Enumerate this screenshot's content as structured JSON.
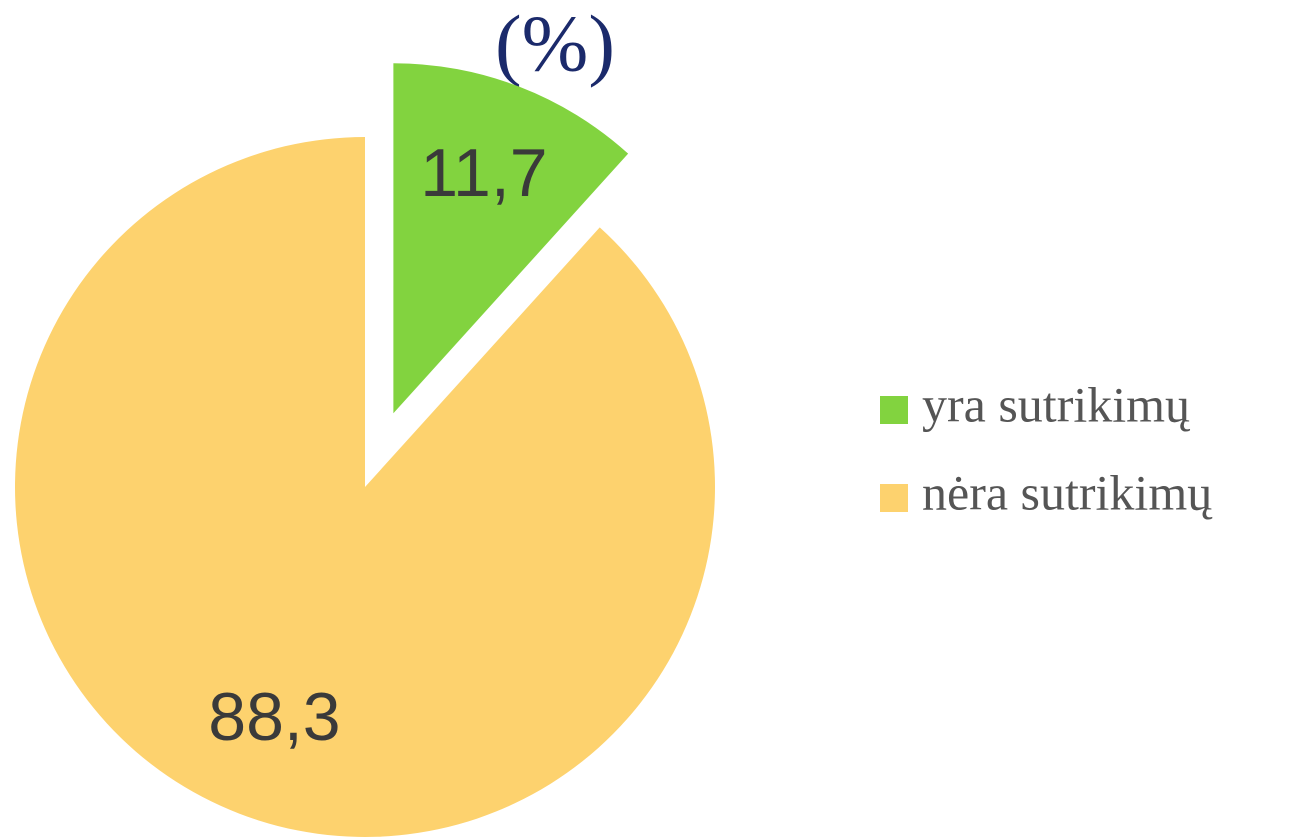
{
  "chart_data": {
    "type": "pie",
    "title": "(%)",
    "categories": [
      "yra sutrikimų",
      "nėra sutrikimų"
    ],
    "values": [
      11.7,
      88.3
    ],
    "value_labels": [
      "11,7",
      "88,3"
    ],
    "colors": [
      "#82d33f",
      "#fdd26e"
    ],
    "legend": "right"
  }
}
